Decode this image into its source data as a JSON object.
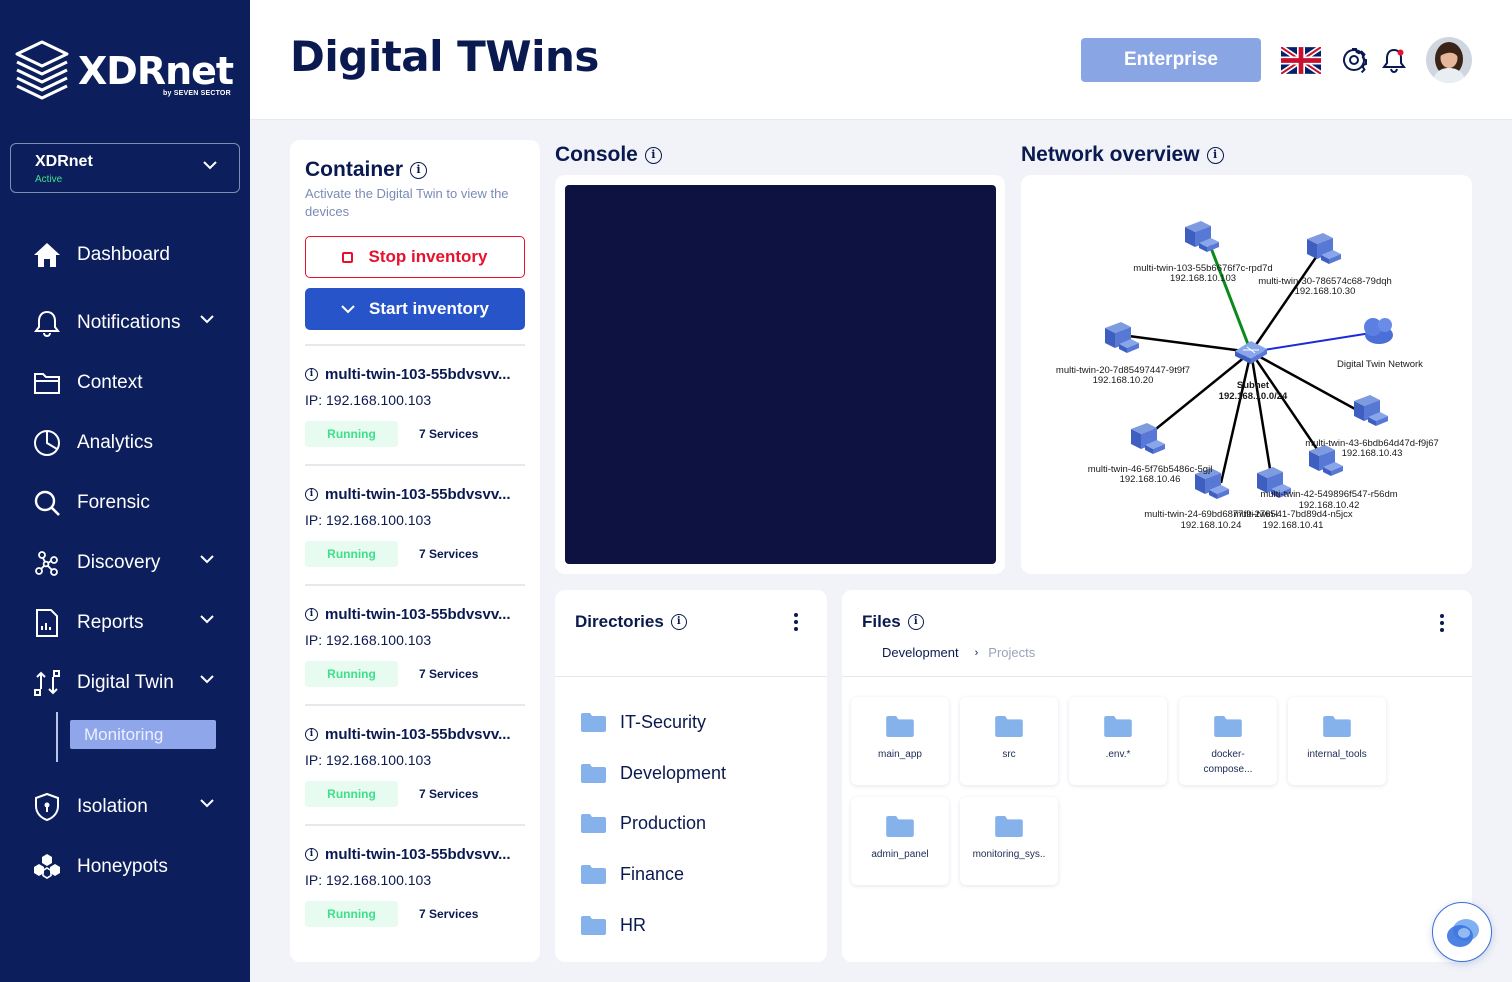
{
  "brand": {
    "name": "XDRnet",
    "sub": "by SEVEN SECTOR"
  },
  "org": {
    "name": "XDRnet",
    "status": "Active"
  },
  "nav": [
    {
      "label": "Dashboard",
      "icon": "home-icon"
    },
    {
      "label": "Notifications",
      "icon": "bell-icon"
    },
    {
      "label": "Context",
      "icon": "folder-icon"
    },
    {
      "label": "Analytics",
      "icon": "pie-chart-icon"
    },
    {
      "label": "Forensic",
      "icon": "search-icon"
    },
    {
      "label": "Discovery",
      "icon": "network-icon"
    },
    {
      "label": "Reports",
      "icon": "report-icon"
    },
    {
      "label": "Digital Twin",
      "icon": "sync-icon"
    },
    {
      "label": "Isolation",
      "icon": "shield-icon"
    },
    {
      "label": "Honeypots",
      "icon": "honeycomb-icon"
    }
  ],
  "submenu": {
    "active": "Monitoring"
  },
  "header": {
    "title": "Digital TWins",
    "plan": "Enterprise"
  },
  "container": {
    "title": "Container",
    "subtitle": "Activate the Digital Twin to view the devices",
    "stop_label": "Stop inventory",
    "start_label": "Start inventory",
    "twins": [
      {
        "name": "multi-twin-103-55bdvsvv...",
        "ip": "IP: 192.168.100.103",
        "status": "Running",
        "services": "7 Services"
      },
      {
        "name": "multi-twin-103-55bdvsvv...",
        "ip": "IP: 192.168.100.103",
        "status": "Running",
        "services": "7 Services"
      },
      {
        "name": "multi-twin-103-55bdvsvv...",
        "ip": "IP: 192.168.100.103",
        "status": "Running",
        "services": "7 Services"
      },
      {
        "name": "multi-twin-103-55bdvsvv...",
        "ip": "IP: 192.168.100.103",
        "status": "Running",
        "services": "7 Services"
      },
      {
        "name": "multi-twin-103-55bdvsvv...",
        "ip": "IP: 192.168.100.103",
        "status": "Running",
        "services": "7 Services"
      }
    ]
  },
  "console": {
    "title": "Console"
  },
  "network": {
    "title": "Network overview",
    "subnet_label": "Subnet",
    "subnet_ip": "192.168.10.0/24",
    "nodes": [
      {
        "name": "multi-twin-103-55b6676f7c-rpd7d",
        "ip": "192.168.10.103"
      },
      {
        "name": "multi-twin-30-786574c68-79dqh",
        "ip": "192.168.10.30"
      },
      {
        "name": "multi-twin-20-7d85497447-9t9f7",
        "ip": "192.168.10.20"
      },
      {
        "name": "Digital Twin Network",
        "ip": ""
      },
      {
        "name": "multi-twin-43-6bdb64d47d-f9j67",
        "ip": "192.168.10.43"
      },
      {
        "name": "multi-twin-46-5f76b5486c-5gjl",
        "ip": "192.168.10.46"
      },
      {
        "name": "multi-twin-42-549896f547-r56dm",
        "ip": "192.168.10.42"
      },
      {
        "name": "multi-twin-24-69bd6877f9-2765l",
        "ip": "192.168.10.24"
      },
      {
        "name": "multi-twin-41-7bd89d4-n5jcx",
        "ip": "192.168.10.41"
      }
    ]
  },
  "directories": {
    "title": "Directories",
    "items": [
      "IT-Security",
      "Development",
      "Production",
      "Finance",
      "HR"
    ]
  },
  "files": {
    "title": "Files",
    "breadcrumb": [
      "Development",
      "Projects"
    ],
    "items": [
      "main_app",
      "src",
      ".env.*",
      "docker-compose...",
      "internal_tools",
      "admin_panel",
      "monitoring_sys.."
    ]
  },
  "colors": {
    "sidebar": "#0c1f5c",
    "accent": "#2754c9",
    "danger": "#e8112d",
    "running": "#3ee08a"
  }
}
